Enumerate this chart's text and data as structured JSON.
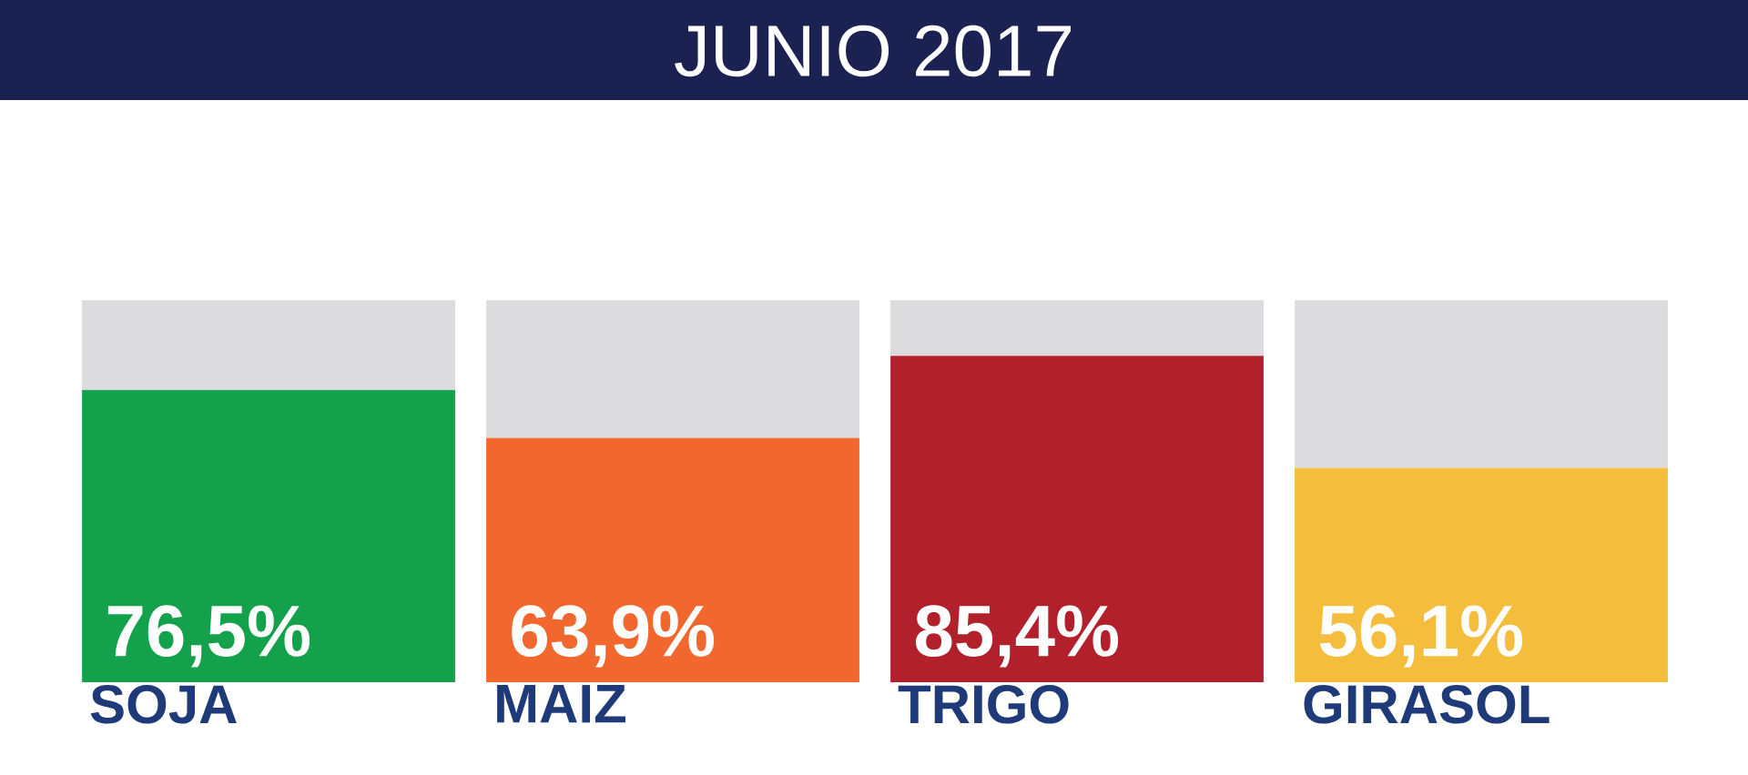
{
  "chart_data": {
    "type": "bar",
    "title": "JUNIO 2017",
    "categories": [
      "SOJA",
      "MAIZ",
      "TRIGO",
      "GIRASOL"
    ],
    "stacked": true,
    "ylim": [
      0,
      100
    ],
    "tick_labels": "x",
    "series": [
      {
        "colors": [
          "#13a24b",
          "#f2672e",
          "#b2202b",
          "#f5bd3c"
        ],
        "values": [
          76.5,
          63.9,
          85.4,
          56.1
        ],
        "value_labels": [
          "76,5%",
          "63,9%",
          "85,4%",
          "56,1%"
        ]
      },
      {
        "color": "#dcdcde",
        "values": [
          23.5,
          36.1,
          14.6,
          43.9
        ]
      }
    ]
  }
}
